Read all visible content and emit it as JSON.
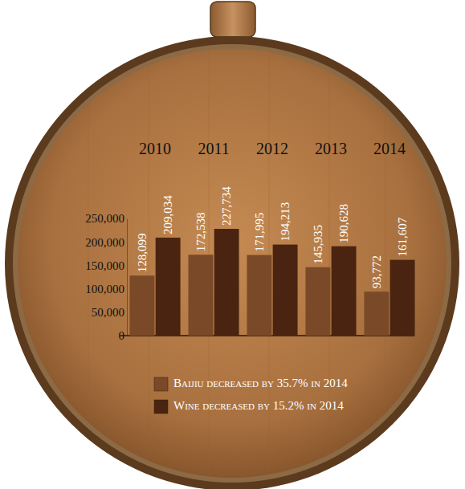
{
  "chart_data": {
    "type": "bar",
    "categories": [
      "2010",
      "2011",
      "2012",
      "2013",
      "2014"
    ],
    "series": [
      {
        "name": "Baijiu decreased by 35.7% in 2014",
        "color": "#7a4a28",
        "values": [
          128099,
          172538,
          171995,
          145935,
          93772
        ],
        "value_labels": [
          "128,099",
          "172,538",
          "171,995",
          "145,935",
          "93,772"
        ]
      },
      {
        "name": "Wine decreased by 15.2% in 2014",
        "color": "#4a2410",
        "values": [
          209034,
          227734,
          194213,
          190628,
          161607
        ],
        "value_labels": [
          "209,034",
          "227,734",
          "194,213",
          "190,628",
          "161,607"
        ]
      }
    ],
    "ylim": [
      0,
      250000
    ],
    "yticks": [
      0,
      {
        "value": 50000,
        "label": "50,000"
      },
      {
        "value": 100000,
        "label": "100,000"
      },
      {
        "value": 150000,
        "label": "150,000"
      },
      {
        "value": 200000,
        "label": "200,000"
      },
      {
        "value": 250000,
        "label": "250,000"
      }
    ],
    "data_labels": true,
    "legend": "bottom"
  }
}
